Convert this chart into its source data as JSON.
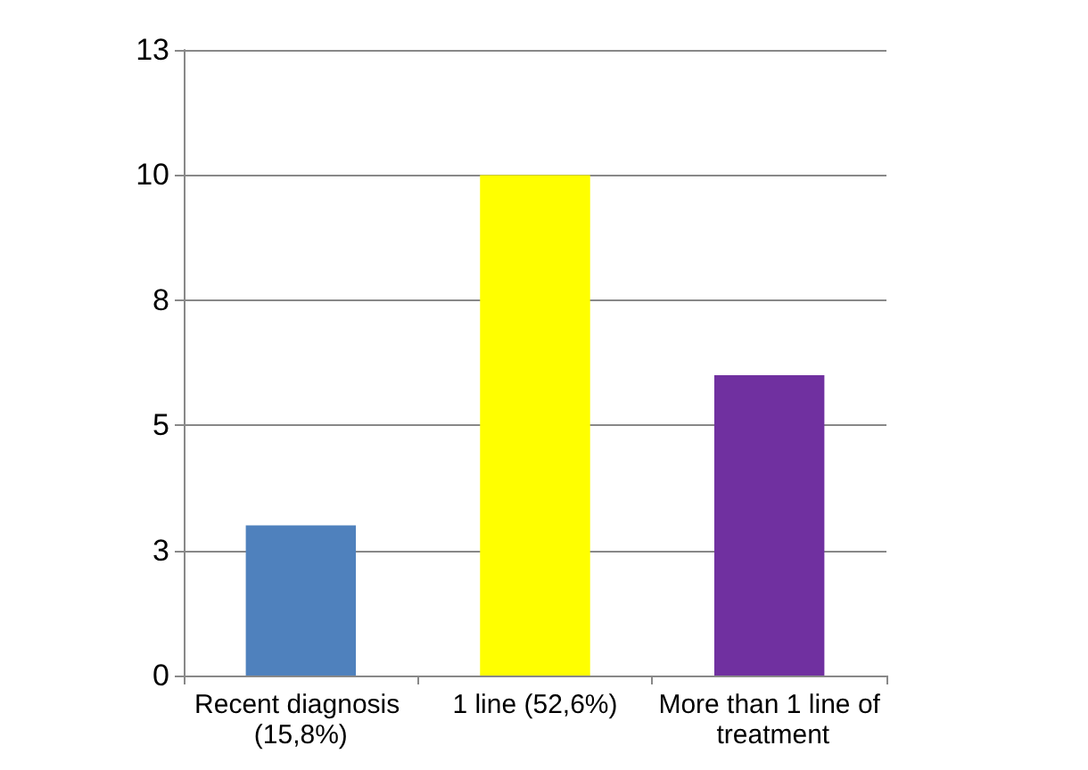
{
  "chart_data": {
    "type": "bar",
    "categories": [
      "Recent diagnosis (15,8%)",
      "1 line (52,6%)",
      "More than 1 line of treatment"
    ],
    "values": [
      3,
      10,
      6
    ],
    "colors": [
      "#4f81bd",
      "#ffff00",
      "#7030a0"
    ],
    "ylim": [
      0,
      12.5
    ],
    "yticks": [
      0,
      {
        "value": 2.5,
        "label": "3"
      },
      5,
      {
        "value": 7.5,
        "label": "8"
      },
      10,
      {
        "value": 12.5,
        "label": "13"
      }
    ],
    "grid": "y"
  }
}
